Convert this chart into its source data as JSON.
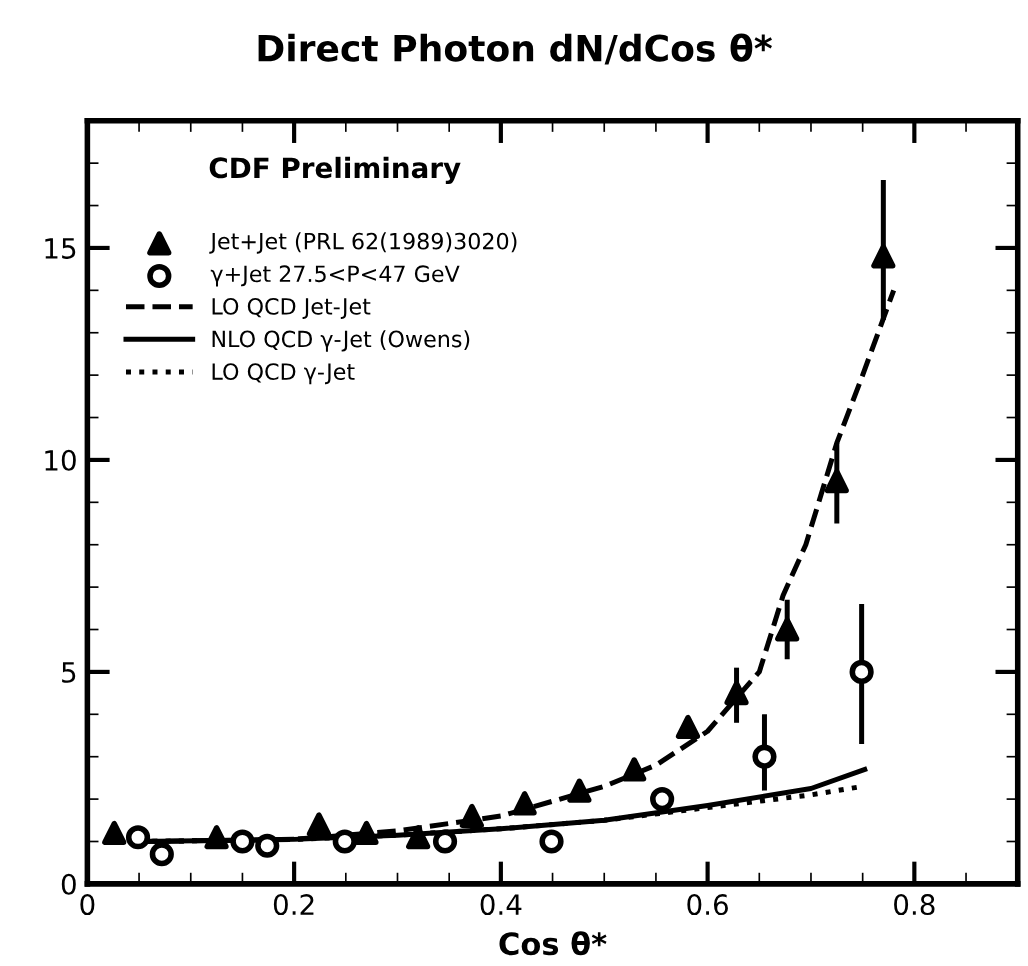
{
  "chart_data": {
    "type": "scatter",
    "title": "Direct Photon dN/dCos θ*",
    "xlabel": "Cos θ*",
    "annotations": [
      "CDF Preliminary"
    ],
    "xlim": [
      0,
      0.9
    ],
    "ylim": [
      0,
      18
    ],
    "xticks": [
      0,
      0.2,
      0.4,
      0.6,
      0.8
    ],
    "yticks": [
      0,
      5,
      10,
      15
    ],
    "legend": "top left",
    "grid": false,
    "series": [
      {
        "name": "Jet+Jet (PRL 62(1989)3020)",
        "marker": "triangle",
        "color": "#000000",
        "x": [
          0.026,
          0.125,
          0.224,
          0.27,
          0.32,
          0.372,
          0.423,
          0.476,
          0.529,
          0.581,
          0.628,
          0.677,
          0.725,
          0.77
        ],
        "values": [
          1.2,
          1.1,
          1.4,
          1.2,
          1.1,
          1.6,
          1.9,
          2.2,
          2.7,
          3.7,
          4.5,
          6.0,
          9.5,
          14.8
        ],
        "errors": [
          null,
          null,
          null,
          null,
          null,
          null,
          null,
          null,
          null,
          null,
          [
            3.8,
            5.1
          ],
          [
            5.3,
            6.7
          ],
          [
            8.5,
            10.4
          ],
          [
            13.3,
            16.6
          ]
        ]
      },
      {
        "name": "γ+Jet 27.5<P<47 GeV",
        "marker": "circle",
        "color": "#000000",
        "x": [
          0.049,
          0.072,
          0.15,
          0.174,
          0.249,
          0.346,
          0.449,
          0.556,
          0.655,
          0.749
        ],
        "values": [
          1.1,
          0.7,
          1.0,
          0.9,
          1.0,
          1.0,
          1.0,
          2.0,
          3.0,
          5.0
        ],
        "errors": [
          null,
          null,
          null,
          null,
          null,
          null,
          null,
          null,
          [
            2.2,
            4.0
          ],
          [
            3.3,
            6.6
          ]
        ]
      },
      {
        "name": "LO QCD Jet-Jet",
        "type": "line",
        "line_style": "dashed",
        "color": "#000000",
        "x": [
          0.05,
          0.2,
          0.3,
          0.4,
          0.5,
          0.55,
          0.6,
          0.65,
          0.673,
          0.695,
          0.725,
          0.75,
          0.78
        ],
        "values": [
          1.0,
          1.05,
          1.25,
          1.6,
          2.3,
          2.8,
          3.6,
          5.0,
          6.8,
          8.0,
          10.4,
          12.0,
          14.0
        ]
      },
      {
        "name": "NLO QCD γ-Jet (Owens)",
        "type": "line",
        "line_style": "solid",
        "color": "#000000",
        "x": [
          0.05,
          0.2,
          0.3,
          0.4,
          0.5,
          0.6,
          0.7,
          0.752
        ],
        "values": [
          1.0,
          1.05,
          1.15,
          1.3,
          1.5,
          1.85,
          2.25,
          2.7
        ]
      },
      {
        "name": "LO QCD γ-Jet",
        "type": "line",
        "line_style": "dotted",
        "color": "#000000",
        "x": [
          0.05,
          0.2,
          0.3,
          0.4,
          0.5,
          0.6,
          0.7,
          0.75
        ],
        "values": [
          1.0,
          1.05,
          1.15,
          1.3,
          1.5,
          1.8,
          2.1,
          2.3
        ]
      }
    ]
  }
}
